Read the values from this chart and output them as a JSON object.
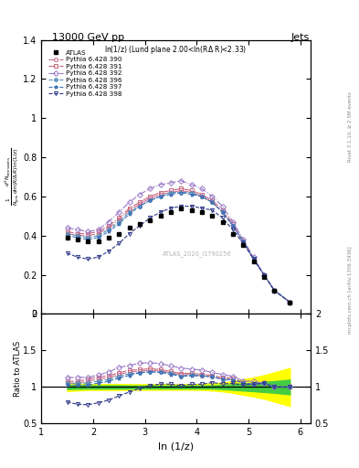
{
  "title_top": "13000 GeV pp",
  "title_right": "Jets",
  "annotation": "ln(1/z) (Lund plane 2.00<ln(RΔ R)<2.33)",
  "watermark": "ATLAS_2020_I1790256",
  "ylabel_ratio": "Ratio to ATLAS",
  "xlabel": "ln (1/z)",
  "right_label_top": "Rivet 3.1.10, ≥ 2.5M events",
  "right_label_bottom": "mcplots.cern.ch [arXiv:1306.3436]",
  "ylim_main": [
    0.0,
    1.4
  ],
  "ylim_ratio": [
    0.5,
    2.0
  ],
  "xlim": [
    1.0,
    6.2
  ],
  "atlas_x": [
    1.5,
    1.7,
    1.9,
    2.1,
    2.3,
    2.5,
    2.7,
    2.9,
    3.1,
    3.3,
    3.5,
    3.7,
    3.9,
    4.1,
    4.3,
    4.5,
    4.7,
    4.9,
    5.1,
    5.3,
    5.5,
    5.8
  ],
  "atlas_y": [
    0.39,
    0.38,
    0.37,
    0.37,
    0.39,
    0.41,
    0.44,
    0.46,
    0.48,
    0.5,
    0.52,
    0.54,
    0.53,
    0.52,
    0.5,
    0.47,
    0.41,
    0.35,
    0.27,
    0.19,
    0.12,
    0.06
  ],
  "atlas_err_y": [
    0.03,
    0.025,
    0.025,
    0.025,
    0.025,
    0.025,
    0.025,
    0.025,
    0.025,
    0.025,
    0.025,
    0.025,
    0.025,
    0.025,
    0.025,
    0.025,
    0.025,
    0.025,
    0.02,
    0.015,
    0.01,
    0.008
  ],
  "series": [
    {
      "label": "Pythia 6.428 390",
      "color": "#c87090",
      "marker": "o",
      "linestyle": "-.",
      "x": [
        1.5,
        1.7,
        1.9,
        2.1,
        2.3,
        2.5,
        2.7,
        2.9,
        3.1,
        3.3,
        3.5,
        3.7,
        3.9,
        4.1,
        4.3,
        4.5,
        4.7,
        4.9,
        5.1,
        5.3,
        5.5,
        5.8
      ],
      "y": [
        0.41,
        0.4,
        0.4,
        0.41,
        0.44,
        0.48,
        0.53,
        0.56,
        0.59,
        0.61,
        0.62,
        0.63,
        0.62,
        0.6,
        0.57,
        0.52,
        0.45,
        0.37,
        0.28,
        0.2,
        0.12,
        0.06
      ]
    },
    {
      "label": "Pythia 6.428 391",
      "color": "#c86880",
      "marker": "s",
      "linestyle": "-.",
      "x": [
        1.5,
        1.7,
        1.9,
        2.1,
        2.3,
        2.5,
        2.7,
        2.9,
        3.1,
        3.3,
        3.5,
        3.7,
        3.9,
        4.1,
        4.3,
        4.5,
        4.7,
        4.9,
        5.1,
        5.3,
        5.5,
        5.8
      ],
      "y": [
        0.42,
        0.41,
        0.41,
        0.42,
        0.45,
        0.49,
        0.54,
        0.57,
        0.6,
        0.62,
        0.63,
        0.64,
        0.63,
        0.61,
        0.58,
        0.53,
        0.46,
        0.37,
        0.28,
        0.2,
        0.12,
        0.06
      ]
    },
    {
      "label": "Pythia 6.428 392",
      "color": "#9878c8",
      "marker": "D",
      "linestyle": "-.",
      "x": [
        1.5,
        1.7,
        1.9,
        2.1,
        2.3,
        2.5,
        2.7,
        2.9,
        3.1,
        3.3,
        3.5,
        3.7,
        3.9,
        4.1,
        4.3,
        4.5,
        4.7,
        4.9,
        5.1,
        5.3,
        5.5,
        5.8
      ],
      "y": [
        0.44,
        0.43,
        0.42,
        0.43,
        0.47,
        0.52,
        0.57,
        0.61,
        0.64,
        0.66,
        0.67,
        0.68,
        0.66,
        0.64,
        0.6,
        0.55,
        0.47,
        0.38,
        0.29,
        0.2,
        0.12,
        0.06
      ]
    },
    {
      "label": "Pythia 6.428 396",
      "color": "#5090b8",
      "marker": "P",
      "linestyle": "--",
      "x": [
        1.5,
        1.7,
        1.9,
        2.1,
        2.3,
        2.5,
        2.7,
        2.9,
        3.1,
        3.3,
        3.5,
        3.7,
        3.9,
        4.1,
        4.3,
        4.5,
        4.7,
        4.9,
        5.1,
        5.3,
        5.5,
        5.8
      ],
      "y": [
        0.41,
        0.4,
        0.39,
        0.4,
        0.43,
        0.47,
        0.52,
        0.55,
        0.58,
        0.6,
        0.62,
        0.62,
        0.62,
        0.6,
        0.57,
        0.52,
        0.45,
        0.37,
        0.28,
        0.2,
        0.12,
        0.06
      ]
    },
    {
      "label": "Pythia 6.428 397",
      "color": "#4070b8",
      "marker": "*",
      "linestyle": "--",
      "x": [
        1.5,
        1.7,
        1.9,
        2.1,
        2.3,
        2.5,
        2.7,
        2.9,
        3.1,
        3.3,
        3.5,
        3.7,
        3.9,
        4.1,
        4.3,
        4.5,
        4.7,
        4.9,
        5.1,
        5.3,
        5.5,
        5.8
      ],
      "y": [
        0.4,
        0.39,
        0.38,
        0.39,
        0.42,
        0.46,
        0.51,
        0.55,
        0.58,
        0.6,
        0.61,
        0.62,
        0.61,
        0.6,
        0.57,
        0.52,
        0.45,
        0.37,
        0.28,
        0.2,
        0.12,
        0.06
      ]
    },
    {
      "label": "Pythia 6.428 398",
      "color": "#303888",
      "marker": "v",
      "linestyle": "--",
      "x": [
        1.5,
        1.7,
        1.9,
        2.1,
        2.3,
        2.5,
        2.7,
        2.9,
        3.1,
        3.3,
        3.5,
        3.7,
        3.9,
        4.1,
        4.3,
        4.5,
        4.7,
        4.9,
        5.1,
        5.3,
        5.5,
        5.8
      ],
      "y": [
        0.31,
        0.29,
        0.28,
        0.29,
        0.32,
        0.36,
        0.41,
        0.45,
        0.49,
        0.52,
        0.54,
        0.55,
        0.55,
        0.54,
        0.53,
        0.49,
        0.43,
        0.36,
        0.28,
        0.2,
        0.12,
        0.06
      ]
    }
  ],
  "atlas_band_green_half": [
    0.028,
    0.025,
    0.022,
    0.022,
    0.022,
    0.022,
    0.02,
    0.02,
    0.02,
    0.02,
    0.02,
    0.02,
    0.02,
    0.02,
    0.022,
    0.028,
    0.038,
    0.048,
    0.058,
    0.068,
    0.08,
    0.1
  ],
  "atlas_band_yellow_half": [
    0.055,
    0.048,
    0.04,
    0.04,
    0.04,
    0.04,
    0.038,
    0.038,
    0.038,
    0.038,
    0.038,
    0.038,
    0.038,
    0.04,
    0.048,
    0.06,
    0.08,
    0.105,
    0.13,
    0.16,
    0.2,
    0.26
  ]
}
